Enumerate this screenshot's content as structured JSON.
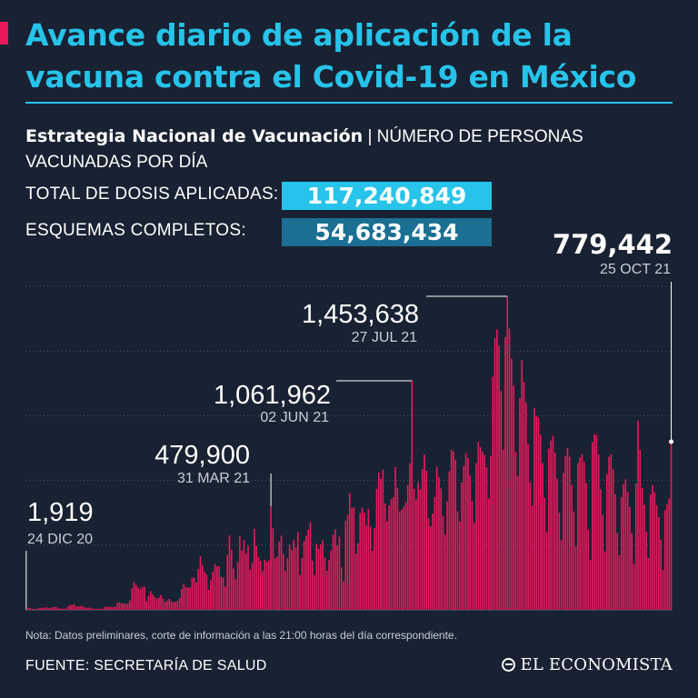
{
  "header": {
    "title": "Avance diario de aplicación de la vacuna contra el Covid-19 en México",
    "subtitle_bold": "Estrategia Nacional de Vacunación",
    "subtitle_rest": " | NÚMERO DE PERSONAS VACUNADAS POR DÍA"
  },
  "stats": {
    "total_label": "TOTAL DE DOSIS APLICADAS:",
    "total_value": "117,240,849",
    "complete_label": "ESQUEMAS COMPLETOS:",
    "complete_value": "54,683,434"
  },
  "colors": {
    "background": "#182232",
    "accent_cyan": "#27c3ea",
    "box_dark_blue": "#1a6f93",
    "bar_pink": "#e8195b"
  },
  "chart_data": {
    "type": "bar",
    "x_start": "2020-12-24",
    "x_end": "2021-10-25",
    "annotations": [
      {
        "date": "24 DIC 20",
        "value": "1,919"
      },
      {
        "date": "31 MAR 21",
        "value": "479,900"
      },
      {
        "date": "02 JUN 21",
        "value": "1,061,962"
      },
      {
        "date": "27 JUL 21",
        "value": "1,453,638"
      },
      {
        "date": "25 OCT 21",
        "value": "779,442"
      }
    ],
    "ylim": [
      0,
      1500000
    ],
    "grid": true,
    "values": [
      1919,
      8000,
      10000,
      5000,
      3000,
      3500,
      9000,
      9500,
      8000,
      10500,
      12000,
      7000,
      9500,
      12500,
      13000,
      11000,
      6000,
      7000,
      4500,
      5000,
      15000,
      23000,
      21000,
      27000,
      16000,
      15000,
      18000,
      19000,
      12000,
      10000,
      9000,
      11000,
      6000,
      5000,
      5500,
      5000,
      4500,
      5000,
      15000,
      14000,
      13000,
      14000,
      13000,
      14000,
      32000,
      34000,
      31000,
      30000,
      29000,
      28000,
      44000,
      100000,
      128000,
      116000,
      102000,
      96000,
      105000,
      107000,
      39000,
      65000,
      87000,
      71000,
      59000,
      52000,
      57000,
      69000,
      53000,
      36000,
      43000,
      51000,
      41000,
      35000,
      38000,
      42000,
      55000,
      97000,
      120000,
      106000,
      103000,
      103000,
      148000,
      149000,
      127000,
      189000,
      248000,
      208000,
      176000,
      164000,
      93000,
      138000,
      177000,
      213000,
      201000,
      203000,
      154000,
      150000,
      108000,
      255000,
      345000,
      278000,
      191000,
      142000,
      222000,
      341000,
      274000,
      324000,
      262000,
      297000,
      186000,
      219000,
      375000,
      298000,
      246000,
      227000,
      180000,
      233000,
      222000,
      230000,
      479900,
      378000,
      239000,
      246000,
      316000,
      344000,
      259000,
      180000,
      239000,
      303000,
      277000,
      324000,
      290000,
      359000,
      161000,
      240000,
      318000,
      343000,
      372000,
      406000,
      228000,
      162000,
      307000,
      282000,
      303000,
      323000,
      242000,
      181000,
      232000,
      276000,
      348000,
      373000,
      299000,
      340000,
      197000,
      132000,
      412000,
      441000,
      541000,
      471000,
      475000,
      261000,
      310000,
      448000,
      474000,
      451000,
      390000,
      468000,
      385000,
      274000,
      379000,
      560000,
      638000,
      607000,
      651000,
      493000,
      411000,
      484000,
      514000,
      523000,
      662000,
      566000,
      456000,
      464000,
      478000,
      498000,
      580000,
      679000,
      1061962,
      560000,
      512000,
      592000,
      557000,
      653000,
      720000,
      645000,
      423000,
      388000,
      447000,
      523000,
      664000,
      616000,
      563000,
      436000,
      348000,
      502000,
      642000,
      742000,
      735000,
      696000,
      457000,
      410000,
      591000,
      667000,
      727000,
      704000,
      623000,
      503000,
      402000,
      680000,
      779000,
      754000,
      734000,
      719000,
      661000,
      516000,
      713000,
      1080000,
      1260000,
      1300000,
      1225000,
      1014000,
      743000,
      1265000,
      1453638,
      1304000,
      1165000,
      1040000,
      732000,
      620000,
      981000,
      1158000,
      1056000,
      961000,
      768000,
      591000,
      483000,
      936000,
      899000,
      892000,
      811000,
      681000,
      520000,
      361000,
      747000,
      785000,
      807000,
      728000,
      608000,
      451000,
      323000,
      634000,
      713000,
      750000,
      710000,
      579000,
      456000,
      294000,
      681000,
      707000,
      721000,
      686000,
      587000,
      372000,
      232000,
      778000,
      814000,
      808000,
      720000,
      559000,
      440000,
      271000,
      629000,
      709000,
      721000,
      652000,
      536000,
      357000,
      253000,
      523000,
      583000,
      605000,
      546000,
      477000,
      356000,
      213000,
      586000,
      877000,
      742000,
      565000,
      487000,
      363000,
      239000,
      535000,
      579000,
      545000,
      485000,
      430000,
      326000,
      185000,
      461000,
      490000,
      516000,
      779442
    ]
  },
  "footer": {
    "note": "Nota: Datos preliminares, corte de información a las 21:00 horas del día correspondiente.",
    "source": "FUENTE: SECRETARÍA DE SALUD",
    "logo_text": "EL ECONOMISTA",
    "logo_icon": "el-economista-logo-icon"
  }
}
